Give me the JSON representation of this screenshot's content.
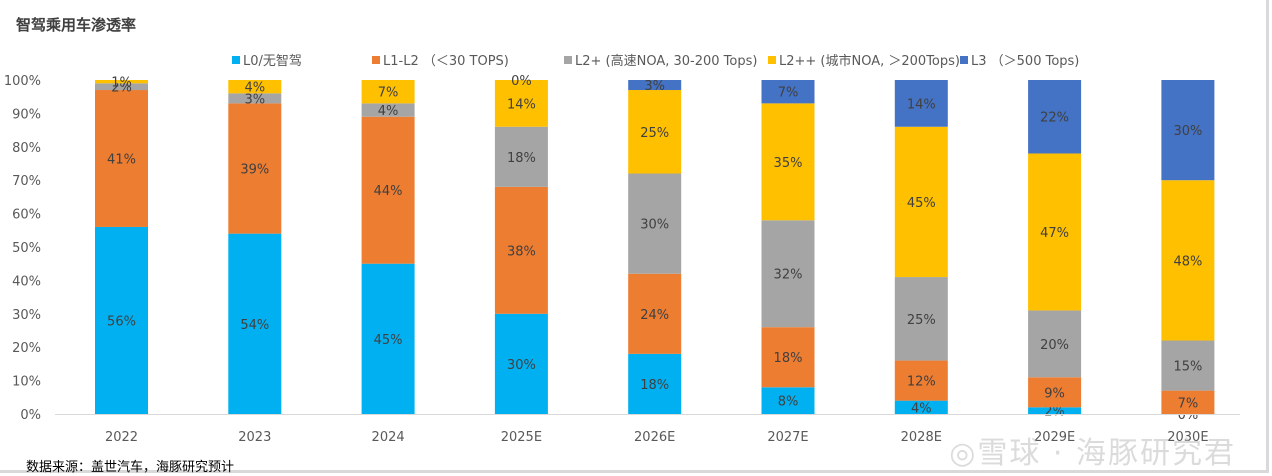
{
  "title": "智驾乘用车渗透率",
  "source": "数据来源：盖世汽车，海豚研究预计",
  "watermark": "◎雪球 · 海豚研究君",
  "chart_data": {
    "type": "bar",
    "stacked": true,
    "title": "智驾乘用车渗透率",
    "xlabel": "",
    "ylabel": "",
    "ylim": [
      0,
      100
    ],
    "yticks": [
      "0%",
      "10%",
      "20%",
      "30%",
      "40%",
      "50%",
      "60%",
      "70%",
      "80%",
      "90%",
      "100%"
    ],
    "grid": false,
    "legend_position": "top",
    "categories": [
      "2022",
      "2023",
      "2024",
      "2025E",
      "2026E",
      "2027E",
      "2028E",
      "2029E",
      "2030E"
    ],
    "series": [
      {
        "name": "L0/无智驾",
        "color": "#00b0f0",
        "values": [
          56,
          54,
          45,
          30,
          18,
          8,
          4,
          2,
          0
        ]
      },
      {
        "name": "L1-L2 （＜30 TOPS)",
        "color": "#ed7d31",
        "values": [
          41,
          39,
          44,
          38,
          24,
          18,
          12,
          9,
          7
        ]
      },
      {
        "name": "L2+ (高速NOA, 30-200 Tops)",
        "color": "#a5a5a5",
        "values": [
          2,
          3,
          4,
          18,
          30,
          32,
          25,
          20,
          15
        ]
      },
      {
        "name": "L2++ (城市NOA, ＞200Tops)",
        "color": "#ffc000",
        "values": [
          1,
          4,
          7,
          14,
          25,
          35,
          45,
          47,
          48
        ]
      },
      {
        "name": "L3 （＞500 Tops)",
        "color": "#4472c4",
        "values": [
          0,
          0,
          0,
          0,
          3,
          7,
          14,
          22,
          30
        ]
      }
    ]
  }
}
